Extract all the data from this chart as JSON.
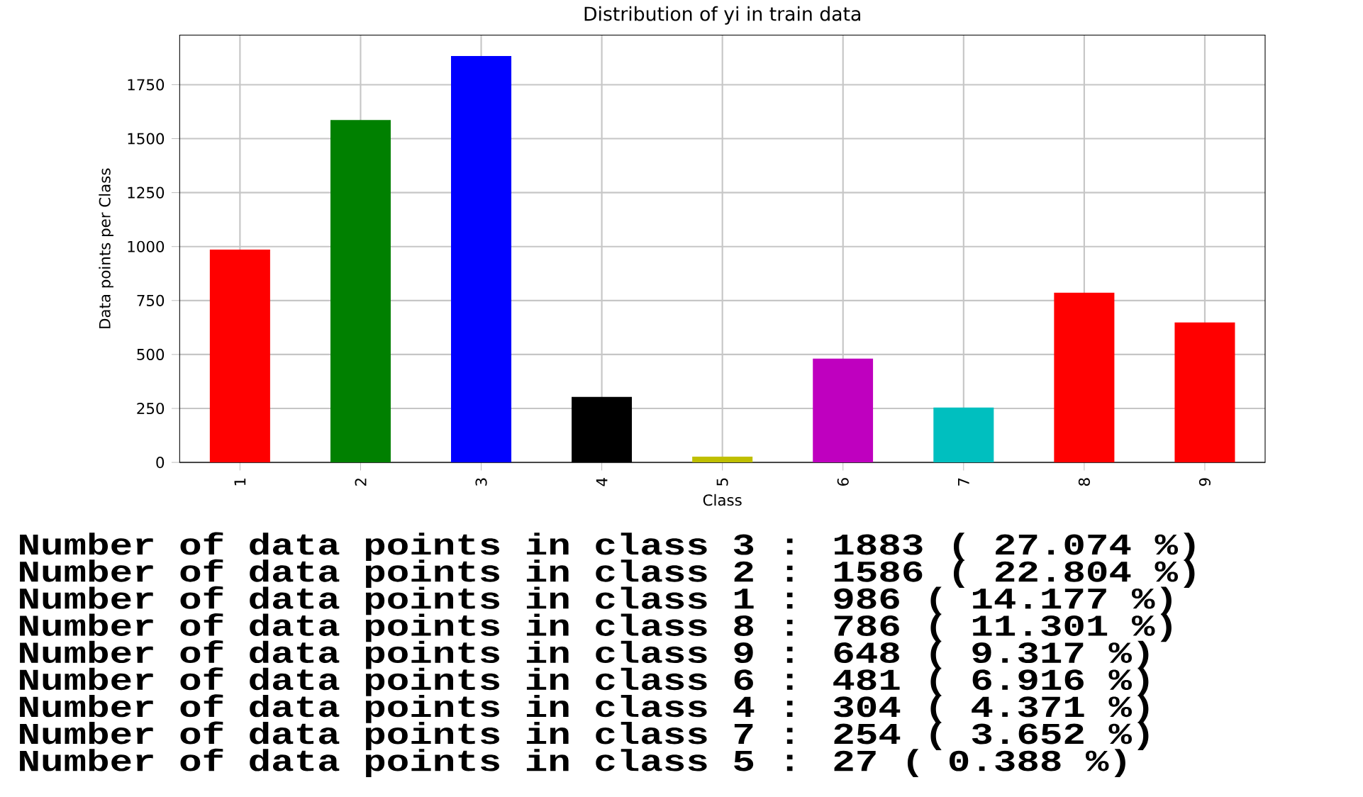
{
  "chart_data": {
    "type": "bar",
    "title": "Distribution of yi in train data",
    "xlabel": "Class",
    "ylabel": "Data points per Class",
    "categories": [
      "1",
      "2",
      "3",
      "4",
      "5",
      "6",
      "7",
      "8",
      "9"
    ],
    "values": [
      986,
      1586,
      1883,
      304,
      27,
      481,
      254,
      786,
      648
    ],
    "colors": [
      "#ff0000",
      "#008000",
      "#0000ff",
      "#000000",
      "#bfbf00",
      "#bf00bf",
      "#00bfbf",
      "#ff0000",
      "#ff0000"
    ],
    "ylim": [
      0,
      1980
    ],
    "yticks": [
      0,
      250,
      500,
      750,
      1000,
      1250,
      1500,
      1750
    ],
    "grid": true,
    "annotations": [
      "Number of data points in class 3 : 1883 ( 27.074 %)",
      "Number of data points in class 2 : 1586 ( 22.804 %)",
      "Number of data points in class 1 : 986 ( 14.177 %)",
      "Number of data points in class 8 : 786 ( 11.301 %)",
      "Number of data points in class 9 : 648 ( 9.317 %)",
      "Number of data points in class 6 : 481 ( 6.916 %)",
      "Number of data points in class 4 : 304 ( 4.371 %)",
      "Number of data points in class 7 : 254 ( 3.652 %)",
      "Number of data points in class 5 : 27 ( 0.388 %)"
    ]
  }
}
